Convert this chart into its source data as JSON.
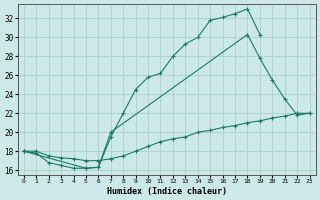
{
  "xlabel": "Humidex (Indice chaleur)",
  "bg_color": "#cde8e8",
  "grid_color": "#aecece",
  "line_color": "#1a7a6a",
  "xlim": [
    -0.5,
    23.5
  ],
  "ylim": [
    15.5,
    33.5
  ],
  "xticks": [
    0,
    1,
    2,
    3,
    4,
    5,
    6,
    7,
    8,
    9,
    10,
    11,
    12,
    13,
    14,
    15,
    16,
    17,
    18,
    19,
    20,
    21,
    22,
    23
  ],
  "yticks": [
    16,
    18,
    20,
    22,
    24,
    26,
    28,
    30,
    32
  ],
  "line1_x": [
    0,
    1,
    2,
    3,
    4,
    5,
    6,
    7,
    8,
    9,
    10,
    11,
    12,
    13,
    14,
    15,
    16,
    17,
    18,
    19
  ],
  "line1_y": [
    18.0,
    17.8,
    16.8,
    16.5,
    16.2,
    16.2,
    16.3,
    19.5,
    22.0,
    24.5,
    25.8,
    26.2,
    28.0,
    29.3,
    30.0,
    31.8,
    32.1,
    32.5,
    33.0,
    30.3
  ],
  "line2_x": [
    0,
    5,
    6,
    7,
    18,
    19,
    20,
    21,
    22,
    23
  ],
  "line2_y": [
    18.0,
    16.2,
    16.3,
    20.0,
    30.3,
    27.8,
    25.5,
    23.5,
    21.8,
    22.0
  ],
  "line3_x": [
    0,
    1,
    2,
    3,
    4,
    5,
    6,
    7,
    8,
    9,
    10,
    11,
    12,
    13,
    14,
    15,
    16,
    17,
    18,
    19,
    20,
    21,
    22,
    23
  ],
  "line3_y": [
    18.0,
    18.0,
    17.5,
    17.3,
    17.2,
    17.0,
    17.0,
    17.2,
    17.5,
    18.0,
    18.5,
    19.0,
    19.3,
    19.5,
    20.0,
    20.2,
    20.5,
    20.7,
    21.0,
    21.2,
    21.5,
    21.7,
    22.0,
    22.0
  ]
}
